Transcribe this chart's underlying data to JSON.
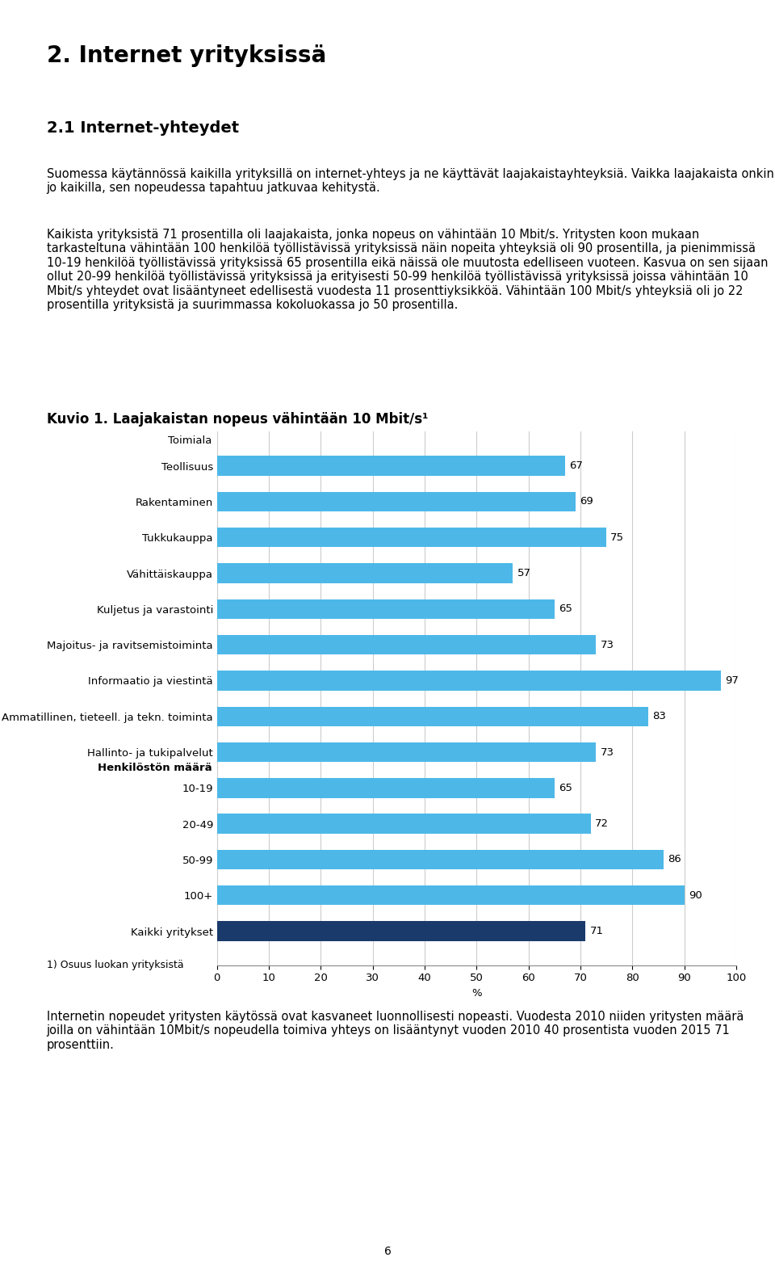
{
  "page_title": "2. Internet yrityksissä",
  "section_title": "2.1 Internet-yhteydet",
  "para1": "Suomessa käytännössä kaikilla yrityksillä on internet-yhteys ja ne käyttävät laajakaistayhteyksiä. Vaikka laajakaista onkin jo kaikilla, sen nopeudessa tapahtuu jatkuvaa kehitystä.",
  "para2": "Kaikista yrityksistä 71 prosentilla oli laajakaista, jonka nopeus on vähintään 10 Mbit/s. Yritysten koon mukaan tarkasteltuna vähintään 100 henkilöä työllistävissä yrityksissä näin nopeita yhteyksiä oli 90 prosentilla, ja pienimmissä 10-19 henkilöä työllistävissä yrityksissä 65 prosentilla eikä näissä ole muutosta edelliseen vuoteen. Kasvua on sen sijaan ollut 20-99 henkilöä työllistävissä yrityksissä ja erityisesti 50-99 henkilöä työllistävissä yrityksissä joissa vähintään 10 Mbit/s yhteydet ovat lisääntyneet edellisestä vuodesta 11 prosenttiyksikköä. Vähintään 100 Mbit/s yhteyksiä oli jo 22 prosentilla yrityksistä ja suurimmassa kokoluokassa jo 50 prosentilla.",
  "chart_title": "Kuvio 1. Laajakaistan nopeus vähintään 10 Mbit/s¹",
  "section_label_toimiala": "Toimiala",
  "section_label_henkilosto": "Henkilöstön määrä",
  "categories": [
    "Teollisuus",
    "Rakentaminen",
    "Tukkukauppa",
    "Vähittäiskauppa",
    "Kuljetus ja varastointi",
    "Majoitus- ja ravitsemistoiminta",
    "Informaatio ja viestintä",
    "Ammatillinen, tieteell. ja tekn. toiminta",
    "Hallinto- ja tukipalvelut",
    "10-19",
    "20-49",
    "50-99",
    "100+",
    "Kaikki yritykset"
  ],
  "values": [
    67,
    69,
    75,
    57,
    65,
    73,
    97,
    83,
    73,
    65,
    72,
    86,
    90,
    71
  ],
  "bar_colors": [
    "#4db8e8",
    "#4db8e8",
    "#4db8e8",
    "#4db8e8",
    "#4db8e8",
    "#4db8e8",
    "#4db8e8",
    "#4db8e8",
    "#4db8e8",
    "#4db8e8",
    "#4db8e8",
    "#4db8e8",
    "#4db8e8",
    "#1a3a6b"
  ],
  "xlabel": "%",
  "xlim": [
    0,
    100
  ],
  "xticks": [
    0,
    10,
    20,
    30,
    40,
    50,
    60,
    70,
    80,
    90,
    100
  ],
  "footnote": "1) Osuus luokan yrityksistä",
  "para_after": "Internetin nopeudet yritysten käytössä ovat kasvaneet luonnollisesti nopeasti. Vuodesta 2010 niiden yritysten määrä joilla on vähintään 10Mbit/s nopeudella toimiva yhteys on lisääntynyt vuoden 2010 40 prosentista vuoden 2015 71 prosenttiin.",
  "page_number": "6",
  "figsize": [
    9.6,
    15.72
  ],
  "dpi": 100,
  "bg_color": "#ffffff",
  "bar_height": 0.55,
  "grid_color": "#cccccc",
  "value_fontsize": 9.5,
  "label_fontsize": 9.5,
  "title_fontsize": 12,
  "text_fontsize": 10.5,
  "page_title_fontsize": 20,
  "section_title_fontsize": 14
}
